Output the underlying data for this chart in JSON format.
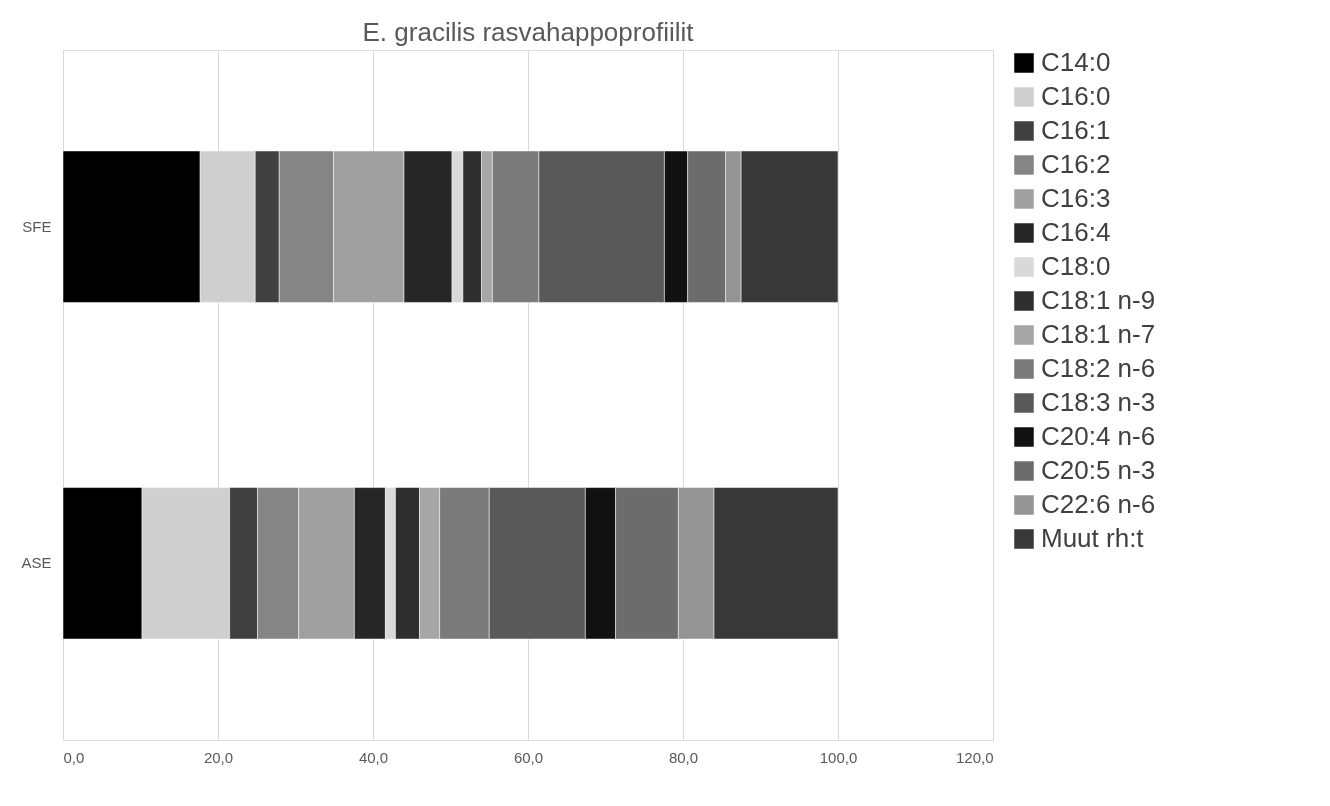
{
  "chart_data": {
    "type": "bar",
    "orientation": "horizontal",
    "stacked": true,
    "title": "E. gracilis rasvahappoprofiilit",
    "categories": [
      "SFE",
      "ASE"
    ],
    "series": [
      {
        "name": "C14:0",
        "color": "#000000",
        "values": [
          17.7,
          10.2
        ]
      },
      {
        "name": "C16:0",
        "color": "#cfcfcf",
        "values": [
          7.1,
          11.3
        ]
      },
      {
        "name": "C16:1",
        "color": "#404040",
        "values": [
          3.1,
          3.6
        ]
      },
      {
        "name": "C16:2",
        "color": "#858585",
        "values": [
          7.0,
          5.3
        ]
      },
      {
        "name": "C16:3",
        "color": "#a0a0a0",
        "values": [
          9.1,
          7.2
        ]
      },
      {
        "name": "C16:4",
        "color": "#262626",
        "values": [
          6.2,
          4.0
        ]
      },
      {
        "name": "C18:0",
        "color": "#d9d9d9",
        "values": [
          1.4,
          1.3
        ]
      },
      {
        "name": "C18:1 n-9",
        "color": "#2e2e2e",
        "values": [
          2.4,
          3.1
        ]
      },
      {
        "name": "C18:1 n-7",
        "color": "#a6a6a6",
        "values": [
          1.4,
          2.6
        ]
      },
      {
        "name": "C18:2 n-6",
        "color": "#7a7a7a",
        "values": [
          6.0,
          6.4
        ]
      },
      {
        "name": "C18:3 n-3",
        "color": "#595959",
        "values": [
          16.2,
          12.4
        ]
      },
      {
        "name": "C20:4 n-6",
        "color": "#111111",
        "values": [
          3.0,
          3.9
        ]
      },
      {
        "name": "C20:5 n-3",
        "color": "#6c6c6c",
        "values": [
          4.9,
          8.1
        ]
      },
      {
        "name": "C22:6 n-6",
        "color": "#949494",
        "values": [
          2.0,
          4.6
        ]
      },
      {
        "name": "Muut rh:t",
        "color": "#383838",
        "values": [
          12.5,
          16.0
        ]
      }
    ],
    "xlim": [
      0,
      120
    ],
    "xticks": [
      {
        "value": 0,
        "label": "0,0"
      },
      {
        "value": 20,
        "label": "20,0"
      },
      {
        "value": 40,
        "label": "40,0"
      },
      {
        "value": 60,
        "label": "60,0"
      },
      {
        "value": 80,
        "label": "80,0"
      },
      {
        "value": 100,
        "label": "100,0"
      },
      {
        "value": 120,
        "label": "120,0"
      }
    ],
    "grid": "x",
    "legend": "right"
  }
}
